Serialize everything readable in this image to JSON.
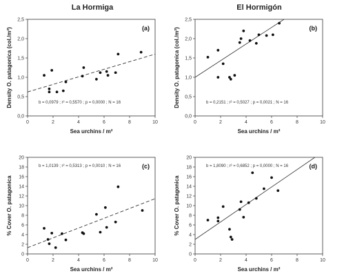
{
  "column_titles": [
    "La Hormiga",
    "El Hormigón"
  ],
  "chart_data": [
    {
      "type": "scatter",
      "panel": "(a)",
      "column": 0,
      "xlabel": "Sea urchins / m²",
      "ylabel": "Density O. patagonica (col./m²)",
      "xlim": [
        0,
        10
      ],
      "ylim": [
        0,
        2.5
      ],
      "xticks": [
        0,
        2,
        4,
        6,
        8,
        10
      ],
      "yticks": [
        0.0,
        0.5,
        1.0,
        1.5,
        2.0,
        2.5
      ],
      "ytick_labels": [
        "0,0",
        "0,5",
        "1,0",
        "1,5",
        "2,0",
        "2,5"
      ],
      "points": [
        [
          1.3,
          1.05
        ],
        [
          1.7,
          0.7
        ],
        [
          1.7,
          0.62
        ],
        [
          1.9,
          1.18
        ],
        [
          2.3,
          0.62
        ],
        [
          2.8,
          0.65
        ],
        [
          3.0,
          0.88
        ],
        [
          4.3,
          1.03
        ],
        [
          4.4,
          1.25
        ],
        [
          5.4,
          0.95
        ],
        [
          5.7,
          1.12
        ],
        [
          6.2,
          1.15
        ],
        [
          6.3,
          1.05
        ],
        [
          6.9,
          1.12
        ],
        [
          7.1,
          1.6
        ],
        [
          8.9,
          1.65
        ]
      ],
      "regression": {
        "intercept": 0.62,
        "slope": 0.0979,
        "style": "dashed"
      },
      "annotation": "b = 0,0979 ; r² = 0,5570 ; p = 0,0000 ; N = 16"
    },
    {
      "type": "scatter",
      "panel": "(b)",
      "column": 1,
      "xlabel": "Sea urchins / m²",
      "ylabel": "Density O. patagonica (col./m²)",
      "xlim": [
        0,
        10
      ],
      "ylim": [
        0,
        2.5
      ],
      "xticks": [
        0,
        2,
        4,
        6,
        8,
        10
      ],
      "yticks": [
        0.0,
        0.5,
        1.0,
        1.5,
        2.0,
        2.5
      ],
      "ytick_labels": [
        "0,0",
        "0,5",
        "1,0",
        "1,5",
        "2,0",
        "2,5"
      ],
      "points": [
        [
          1.0,
          1.52
        ],
        [
          1.8,
          1.7
        ],
        [
          1.8,
          1.0
        ],
        [
          2.2,
          1.35
        ],
        [
          2.7,
          1.0
        ],
        [
          2.8,
          0.95
        ],
        [
          3.1,
          1.05
        ],
        [
          3.5,
          1.9
        ],
        [
          3.6,
          2.0
        ],
        [
          3.8,
          2.2
        ],
        [
          4.3,
          1.95
        ],
        [
          4.8,
          1.88
        ],
        [
          5.0,
          2.1
        ],
        [
          5.6,
          2.08
        ],
        [
          6.1,
          2.1
        ],
        [
          6.6,
          2.4
        ]
      ],
      "regression": {
        "intercept": 1.0,
        "slope": 0.2151,
        "style": "solid"
      },
      "annotation": "b = 0,2151 ; r² = 0,5027 ; p = 0,0021 ; N = 16"
    },
    {
      "type": "scatter",
      "panel": "(c)",
      "column": 0,
      "xlabel": "Sea urchins / m²",
      "ylabel": "% Cover O. patagonica",
      "xlim": [
        0,
        10
      ],
      "ylim": [
        0,
        20
      ],
      "xticks": [
        0,
        2,
        4,
        6,
        8,
        10
      ],
      "yticks": [
        0,
        2,
        4,
        6,
        8,
        10,
        12,
        14,
        16,
        18,
        20
      ],
      "ytick_labels": [
        "0",
        "2",
        "4",
        "6",
        "8",
        "10",
        "12",
        "14",
        "16",
        "18",
        "20"
      ],
      "points": [
        [
          1.3,
          5.3
        ],
        [
          1.6,
          3.0
        ],
        [
          1.7,
          2.1
        ],
        [
          1.9,
          4.3
        ],
        [
          2.2,
          1.3
        ],
        [
          2.7,
          4.2
        ],
        [
          3.0,
          2.9
        ],
        [
          4.3,
          4.4
        ],
        [
          4.4,
          4.2
        ],
        [
          5.4,
          8.2
        ],
        [
          5.7,
          4.5
        ],
        [
          6.1,
          9.6
        ],
        [
          6.2,
          5.5
        ],
        [
          6.9,
          6.6
        ],
        [
          7.1,
          13.9
        ],
        [
          9.0,
          9.0
        ]
      ],
      "regression": {
        "intercept": 1.3,
        "slope": 1.0139,
        "style": "dashed"
      },
      "annotation": "b = 1,0139 ; r² = 0,5313 ; p = 0,0010 ; N = 16"
    },
    {
      "type": "scatter",
      "panel": "(d)",
      "column": 1,
      "xlabel": "Sea urchins / m²",
      "ylabel": "% Cover O. patagonica",
      "xlim": [
        0,
        10
      ],
      "ylim": [
        0,
        20
      ],
      "xticks": [
        0,
        2,
        4,
        6,
        8,
        10
      ],
      "yticks": [
        0,
        2,
        4,
        6,
        8,
        10,
        12,
        14,
        16,
        18,
        20
      ],
      "ytick_labels": [
        "0",
        "2",
        "4",
        "6",
        "8",
        "10",
        "12",
        "14",
        "16",
        "18",
        "20"
      ],
      "points": [
        [
          1.0,
          7.0
        ],
        [
          1.8,
          7.5
        ],
        [
          1.8,
          6.8
        ],
        [
          2.2,
          9.8
        ],
        [
          2.7,
          5.1
        ],
        [
          2.8,
          3.5
        ],
        [
          2.9,
          3.0
        ],
        [
          3.5,
          9.2
        ],
        [
          3.6,
          10.8
        ],
        [
          4.2,
          10.6
        ],
        [
          4.5,
          16.8
        ],
        [
          4.8,
          11.5
        ],
        [
          5.4,
          13.5
        ],
        [
          6.0,
          15.8
        ],
        [
          6.5,
          13.1
        ],
        [
          3.8,
          7.6
        ]
      ],
      "regression": {
        "intercept": 3.0,
        "slope": 1.809,
        "style": "solid"
      },
      "annotation": "b = 1,8090 ; r² = 0,6852 ; p = 0,0000 ; N = 16"
    }
  ]
}
